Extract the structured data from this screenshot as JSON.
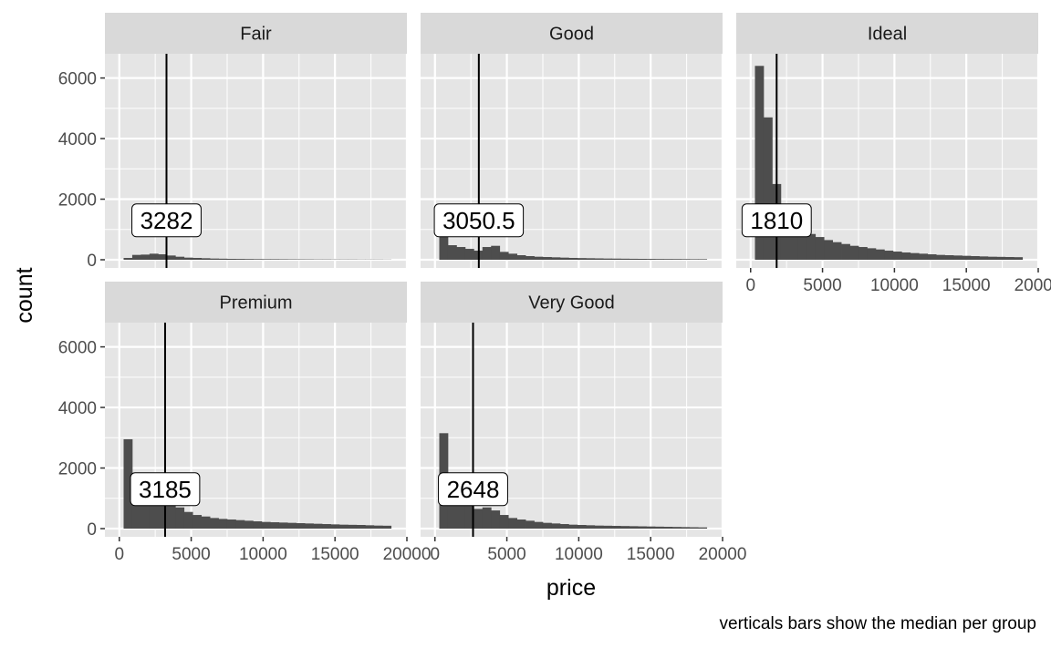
{
  "chart_data": {
    "type": "bar",
    "subtype": "faceted-histogram",
    "xlabel": "price",
    "ylabel": "count",
    "caption": "verticals bars show the median per group",
    "xlim": [
      0,
      20000
    ],
    "ylim": [
      0,
      6500
    ],
    "x_ticks": [
      0,
      5000,
      10000,
      15000,
      20000
    ],
    "y_ticks": [
      0,
      2000,
      4000,
      6000
    ],
    "bin_width": 600,
    "bin_start": 300,
    "grid": true,
    "colors": {
      "panel_bg": "#e5e5e5",
      "grid": "#ffffff",
      "strip_bg": "#d9d9d9",
      "bar": "#4d4d4d",
      "median_line": "#000000"
    },
    "facets": [
      {
        "name": "Fair",
        "median": 3282,
        "median_label": "3282",
        "counts": [
          60,
          160,
          170,
          200,
          180,
          140,
          100,
          70,
          60,
          50,
          40,
          35,
          30,
          28,
          25,
          22,
          20,
          20,
          18,
          16,
          15,
          14,
          12,
          12,
          10,
          10,
          10,
          8,
          8,
          8,
          6
        ]
      },
      {
        "name": "Good",
        "median": 3050.5,
        "median_label": "3050.5",
        "counts": [
          780,
          480,
          420,
          360,
          300,
          420,
          460,
          260,
          200,
          150,
          120,
          100,
          90,
          80,
          70,
          60,
          55,
          50,
          45,
          40,
          38,
          35,
          32,
          30,
          28,
          26,
          25,
          24,
          22,
          20,
          20
        ]
      },
      {
        "name": "Ideal",
        "median": 1810,
        "median_label": "1810",
        "counts": [
          6400,
          4700,
          2500,
          1400,
          1000,
          950,
          850,
          750,
          650,
          580,
          520,
          460,
          420,
          380,
          340,
          300,
          270,
          240,
          220,
          200,
          180,
          160,
          150,
          140,
          130,
          120,
          110,
          100,
          95,
          90,
          85
        ]
      },
      {
        "name": "Premium",
        "median": 3185,
        "median_label": "3185",
        "counts": [
          2950,
          1350,
          1050,
          900,
          800,
          850,
          700,
          550,
          450,
          400,
          350,
          320,
          300,
          280,
          260,
          240,
          220,
          210,
          200,
          190,
          180,
          170,
          160,
          150,
          140,
          130,
          125,
          120,
          110,
          100,
          95
        ]
      },
      {
        "name": "Very Good",
        "median": 2648,
        "median_label": "2648",
        "counts": [
          3150,
          1500,
          1100,
          800,
          650,
          700,
          600,
          450,
          350,
          300,
          260,
          220,
          190,
          170,
          150,
          130,
          120,
          110,
          100,
          95,
          90,
          85,
          80,
          75,
          70,
          65,
          60,
          55,
          50,
          45,
          40
        ]
      }
    ]
  }
}
